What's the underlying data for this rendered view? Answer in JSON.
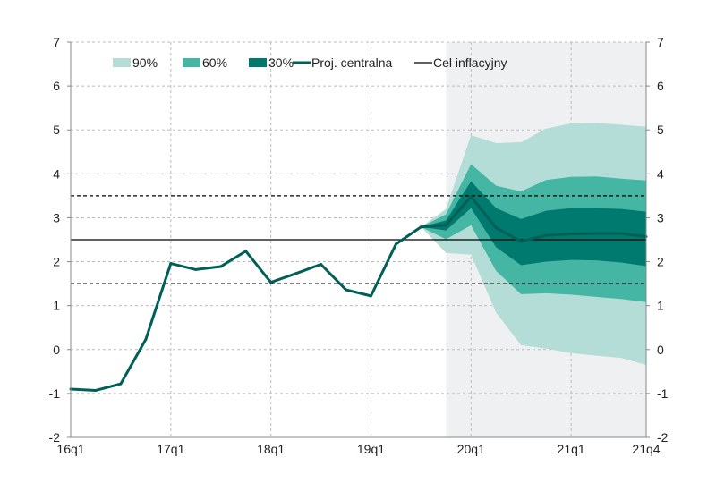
{
  "chart_data": {
    "type": "area",
    "title": "",
    "xlabel": "",
    "ylabel": "",
    "ylim": [
      -2,
      7
    ],
    "yticks": [
      "-2",
      "-1",
      "0",
      "1",
      "2",
      "3",
      "4",
      "5",
      "6",
      "7"
    ],
    "xticks": [
      {
        "label": "16q1",
        "i": 0
      },
      {
        "label": "17q1",
        "i": 4
      },
      {
        "label": "18q1",
        "i": 8
      },
      {
        "label": "19q1",
        "i": 12
      },
      {
        "label": "20q1",
        "i": 16
      },
      {
        "label": "21q1",
        "i": 20
      },
      {
        "label": "21q4",
        "i": 23
      }
    ],
    "quarters": [
      "16q1",
      "16q2",
      "16q3",
      "16q4",
      "17q1",
      "17q2",
      "17q3",
      "17q4",
      "18q1",
      "18q2",
      "18q3",
      "18q4",
      "19q1",
      "19q2",
      "19q3",
      "19q4",
      "20q1",
      "20q2",
      "20q3",
      "20q4",
      "21q1",
      "21q2",
      "21q3",
      "21q4"
    ],
    "projection_start": "19q4",
    "central": [
      -0.9,
      -0.93,
      -0.78,
      0.23,
      1.96,
      1.82,
      1.89,
      2.24,
      1.53,
      1.73,
      1.94,
      1.36,
      1.22,
      2.4,
      2.79,
      2.83,
      3.48,
      2.77,
      2.46,
      2.6,
      2.63,
      2.64,
      2.64,
      2.57
    ],
    "fan_start_index": 14,
    "bands": [
      {
        "name": "90%",
        "color": "#b3ddd6",
        "upper": [
          2.79,
          3.2,
          4.88,
          4.7,
          4.72,
          5.03,
          5.15,
          5.16,
          5.12,
          5.07
        ],
        "lower": [
          2.79,
          2.2,
          2.16,
          0.84,
          0.1,
          0.02,
          -0.08,
          -0.14,
          -0.19,
          -0.35
        ]
      },
      {
        "name": "60%",
        "color": "#45b5a4",
        "upper": [
          2.79,
          3.08,
          4.22,
          3.73,
          3.6,
          3.86,
          3.93,
          3.94,
          3.89,
          3.85
        ],
        "lower": [
          2.79,
          2.51,
          2.83,
          1.79,
          1.26,
          1.28,
          1.25,
          1.2,
          1.15,
          1.08
        ]
      },
      {
        "name": "30%",
        "color": "#007a6e",
        "upper": [
          2.79,
          2.94,
          3.83,
          3.22,
          2.97,
          3.16,
          3.22,
          3.22,
          3.2,
          3.14
        ],
        "lower": [
          2.79,
          2.71,
          3.22,
          2.33,
          1.92,
          2.0,
          2.04,
          2.03,
          1.98,
          1.9
        ]
      }
    ],
    "target": 2.5,
    "tolerance": [
      1.5,
      3.5
    ],
    "legend": {
      "placement": "top",
      "items": [
        "90%",
        "60%",
        "30%",
        "Proj. centralna",
        "Cel inflacyjny"
      ]
    },
    "colors": {
      "central": "#005f57",
      "target": "#000000",
      "shade": "#eff0f2"
    },
    "grid": true
  }
}
